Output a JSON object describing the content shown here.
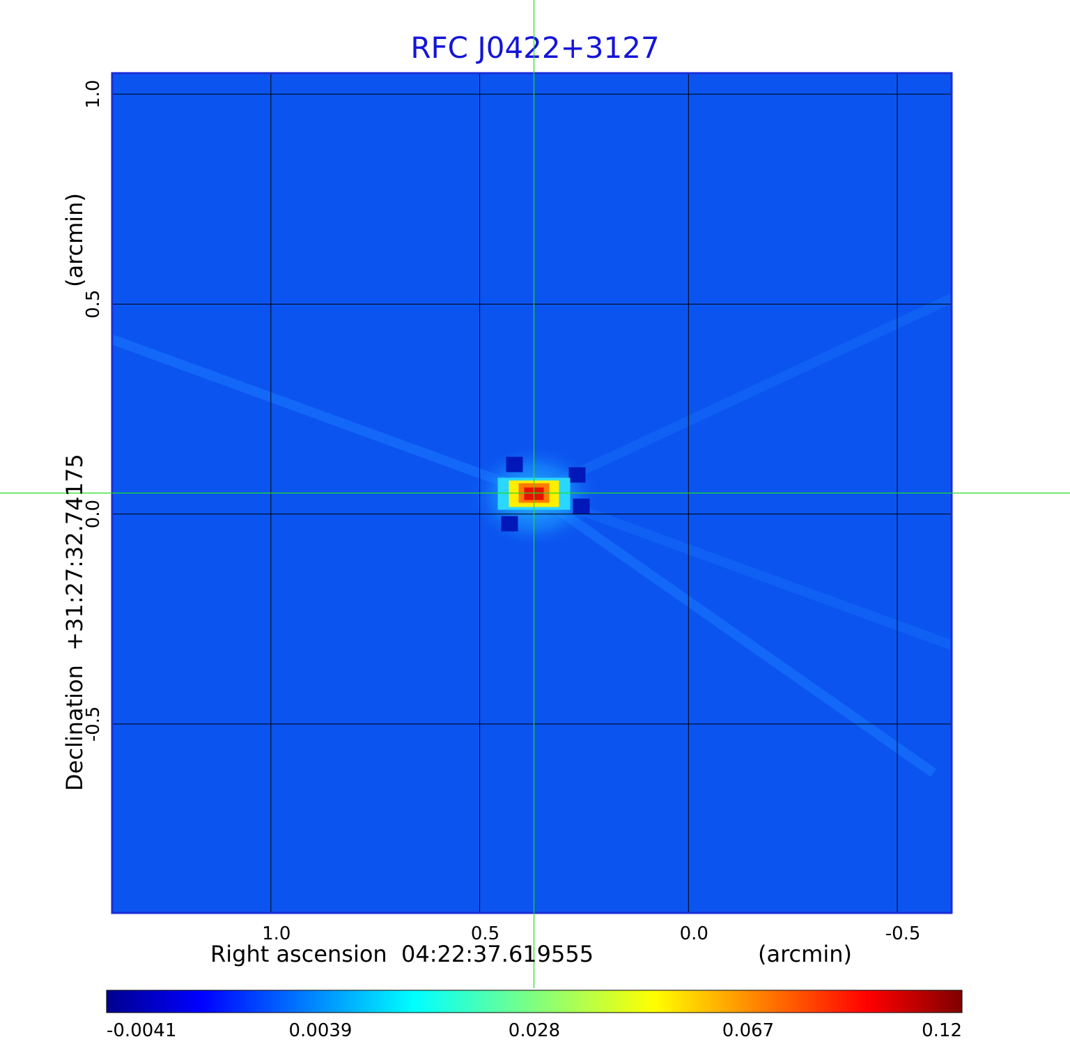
{
  "chart_data": {
    "type": "heatmap",
    "title": "RFC J0422+3127",
    "xlabel": "Right ascension  04:22:37.619555",
    "xunit": "(arcmin)",
    "ylabel": "Declination  +31:27:32.74175",
    "yunit": "(arcmin)",
    "xlim": [
      1.38,
      -0.63
    ],
    "ylim": [
      -0.95,
      1.05
    ],
    "x_ticks": [
      1.0,
      0.5,
      0.0,
      -0.5
    ],
    "x_tick_labels": [
      "1.0",
      "0.5",
      "0.0",
      "-0.5"
    ],
    "y_ticks": [
      -0.5,
      0.0,
      0.5,
      1.0
    ],
    "y_tick_labels": [
      "-0.5",
      "0.0",
      "0.5",
      "1.0"
    ],
    "grid": true,
    "crosshair": {
      "x": 0.37,
      "y": 0.05,
      "color": "#22dd22"
    },
    "source": {
      "x": 0.37,
      "y": 0.05,
      "peak": 0.12
    },
    "colorbar": {
      "orientation": "horizontal",
      "position": "bottom",
      "tick_values": [
        -0.0041,
        0.0039,
        0.028,
        0.067,
        0.12
      ],
      "tick_labels": [
        "-0.0041",
        "0.0039",
        "0.028",
        "0.067",
        "0.12"
      ],
      "colormap": "jet",
      "min": -0.0041,
      "max": 0.12
    },
    "background_color": "#0c54f0",
    "grid_color": "#000000",
    "frame_color": "#1a2ed8"
  }
}
